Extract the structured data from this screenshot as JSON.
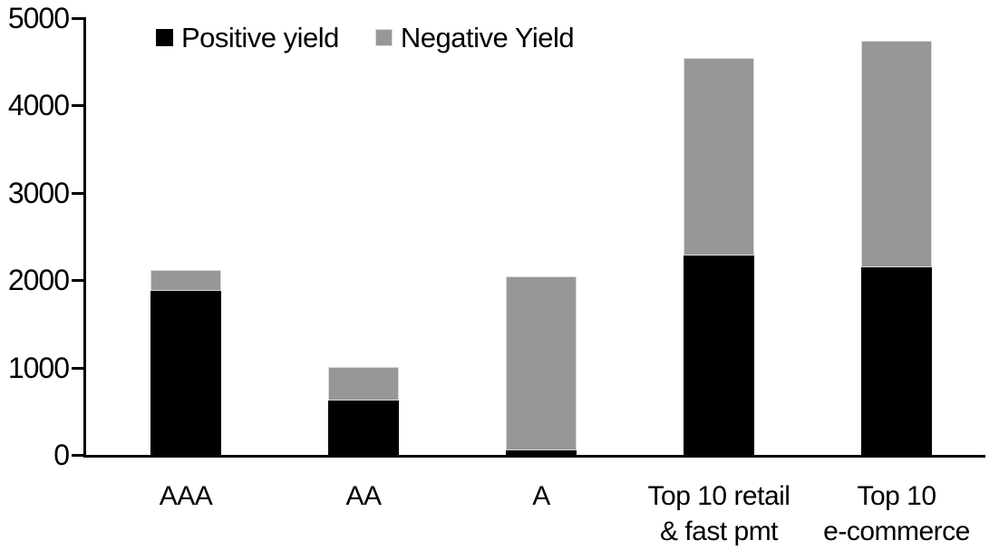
{
  "chart_data": {
    "type": "bar",
    "stacked": true,
    "title": "",
    "xlabel": "",
    "ylabel": "",
    "categories": [
      "AAA",
      "AA",
      "A",
      "Top 10 retail & fast pmt",
      "Top 10 e-commerce"
    ],
    "category_lines": [
      [
        "AAA"
      ],
      [
        "AA"
      ],
      [
        "A"
      ],
      [
        "Top 10 retail",
        "& fast pmt"
      ],
      [
        "Top 10",
        "e-commerce"
      ]
    ],
    "series": [
      {
        "name": "Positive yield",
        "color": "#000000",
        "values": [
          1880,
          620,
          55,
          2280,
          2145
        ]
      },
      {
        "name": "Negative Yield",
        "color": "#979797",
        "values": [
          240,
          390,
          1990,
          2265,
          2595
        ]
      }
    ],
    "ylim": [
      0,
      5000
    ],
    "yticks": [
      0,
      1000,
      2000,
      3000,
      4000,
      5000
    ],
    "legend_position": "top",
    "grid": false
  },
  "colors": {
    "axis": "#000000",
    "background": "#ffffff",
    "positive": "#000000",
    "negative": "#979797",
    "bar_border": "#d9d9d9"
  }
}
